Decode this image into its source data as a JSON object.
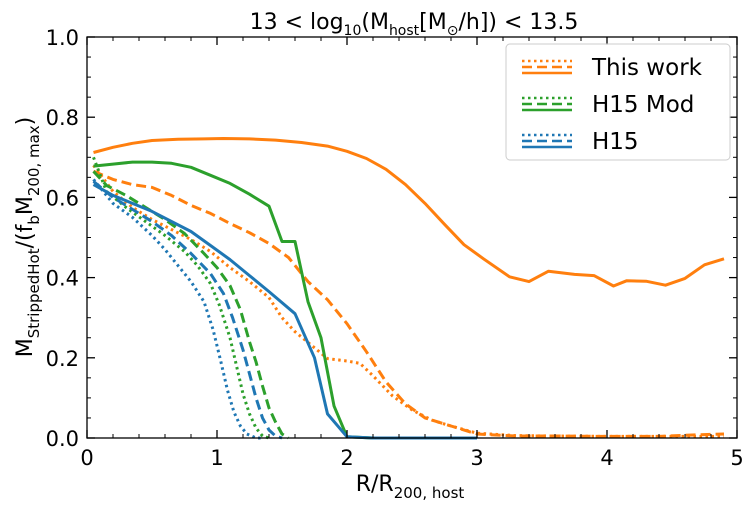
{
  "chart_data": {
    "type": "line",
    "title": "13 < log10(Mhost[M⊙/h]) < 13.5",
    "title_parts": {
      "lead": "13 < log",
      "sub1": "10",
      "mid1": "(M",
      "sub2": "host",
      "mid2": "[M",
      "sun": "⊙",
      "trail": "/h]) < 13.5"
    },
    "xlabel": "R/R200, host",
    "xlabel_parts": {
      "main": "R/R",
      "sub": "200, host"
    },
    "ylabel": "MStrippedHot/(fbM200, max)",
    "ylabel_parts": {
      "m1": "M",
      "s1": "StrippedHot",
      "m2": "/(f",
      "s2": "b",
      "m3": "M",
      "s3": "200, max",
      "m4": ")"
    },
    "xlim": [
      0,
      5
    ],
    "ylim": [
      0,
      1
    ],
    "xticks": [
      "0",
      "1",
      "2",
      "3",
      "4",
      "5"
    ],
    "yticks": [
      "0.0",
      "0.2",
      "0.4",
      "0.6",
      "0.8",
      "1.0"
    ],
    "legend": {
      "placement": "top-right",
      "entries": [
        {
          "label": "This work",
          "color": "#ff7f0e"
        },
        {
          "label": "H15 Mod",
          "color": "#2ca02c"
        },
        {
          "label": "H15",
          "color": "#1f77b4"
        }
      ]
    },
    "series": [
      {
        "name": "This work (solid)",
        "color": "#ff7f0e",
        "style": "solid",
        "x": [
          0.05,
          0.2,
          0.35,
          0.5,
          0.7,
          0.9,
          1.05,
          1.25,
          1.45,
          1.65,
          1.85,
          2.0,
          2.15,
          2.3,
          2.45,
          2.6,
          2.75,
          2.9,
          3.05,
          3.25,
          3.4,
          3.55,
          3.75,
          3.9,
          4.05,
          4.15,
          4.3,
          4.45,
          4.6,
          4.75,
          4.9
        ],
        "y": [
          0.712,
          0.725,
          0.735,
          0.742,
          0.745,
          0.746,
          0.747,
          0.746,
          0.743,
          0.737,
          0.728,
          0.715,
          0.697,
          0.67,
          0.632,
          0.585,
          0.533,
          0.482,
          0.447,
          0.402,
          0.39,
          0.416,
          0.408,
          0.405,
          0.379,
          0.392,
          0.391,
          0.381,
          0.398,
          0.432,
          0.447
        ]
      },
      {
        "name": "This work (dashed)",
        "color": "#ff7f0e",
        "style": "dashed",
        "x": [
          0.05,
          0.2,
          0.35,
          0.5,
          0.65,
          0.8,
          0.95,
          1.1,
          1.25,
          1.4,
          1.55,
          1.7,
          1.85,
          2.0,
          2.15,
          2.3,
          2.45,
          2.6,
          2.8,
          3.0,
          3.3,
          3.6,
          4.0,
          4.4,
          4.7,
          4.9
        ],
        "y": [
          0.665,
          0.645,
          0.632,
          0.625,
          0.605,
          0.58,
          0.56,
          0.535,
          0.512,
          0.485,
          0.45,
          0.39,
          0.345,
          0.285,
          0.215,
          0.14,
          0.085,
          0.05,
          0.03,
          0.01,
          0.005,
          0.005,
          0.004,
          0.004,
          0.008,
          0.01
        ]
      },
      {
        "name": "This work (dotted)",
        "color": "#ff7f0e",
        "style": "dotted",
        "x": [
          0.05,
          0.2,
          0.35,
          0.5,
          0.65,
          0.8,
          0.95,
          1.1,
          1.25,
          1.4,
          1.5,
          1.6,
          1.75,
          1.85,
          2.0,
          2.1,
          2.2,
          2.35,
          2.5,
          2.65,
          2.8,
          3.0,
          3.3,
          3.6,
          4.0,
          4.5,
          4.9
        ],
        "y": [
          0.68,
          0.615,
          0.575,
          0.545,
          0.52,
          0.495,
          0.465,
          0.425,
          0.39,
          0.35,
          0.3,
          0.265,
          0.225,
          0.198,
          0.192,
          0.186,
          0.155,
          0.105,
          0.07,
          0.045,
          0.03,
          0.012,
          0.006,
          0.005,
          0.004,
          0.004,
          0.004
        ]
      },
      {
        "name": "H15 Mod (solid)",
        "color": "#2ca02c",
        "style": "solid",
        "x": [
          0.05,
          0.2,
          0.35,
          0.5,
          0.65,
          0.8,
          0.95,
          1.1,
          1.25,
          1.4,
          1.5,
          1.6,
          1.7,
          1.8,
          1.9,
          2.0,
          2.2,
          2.5,
          3.0
        ],
        "y": [
          0.678,
          0.683,
          0.688,
          0.688,
          0.685,
          0.675,
          0.655,
          0.635,
          0.608,
          0.578,
          0.49,
          0.49,
          0.34,
          0.25,
          0.08,
          0.003,
          0,
          0,
          0
        ]
      },
      {
        "name": "H15 Mod (dashed)",
        "color": "#2ca02c",
        "style": "dashed",
        "x": [
          0.05,
          0.15,
          0.3,
          0.45,
          0.6,
          0.75,
          0.9,
          1.0,
          1.1,
          1.18,
          1.25,
          1.3,
          1.35,
          1.4,
          1.45,
          1.5,
          1.55
        ],
        "y": [
          0.665,
          0.63,
          0.605,
          0.575,
          0.545,
          0.51,
          0.46,
          0.425,
          0.38,
          0.32,
          0.24,
          0.19,
          0.13,
          0.075,
          0.04,
          0.01,
          0
        ]
      },
      {
        "name": "H15 Mod (dotted)",
        "color": "#2ca02c",
        "style": "dotted",
        "x": [
          0.05,
          0.15,
          0.3,
          0.45,
          0.6,
          0.75,
          0.85,
          0.95,
          1.02,
          1.1,
          1.15,
          1.2,
          1.25,
          1.3,
          1.35,
          1.4
        ],
        "y": [
          0.7,
          0.615,
          0.575,
          0.54,
          0.505,
          0.465,
          0.43,
          0.385,
          0.33,
          0.25,
          0.18,
          0.11,
          0.06,
          0.025,
          0.005,
          0
        ]
      },
      {
        "name": "H15 (solid)",
        "color": "#1f77b4",
        "style": "solid",
        "x": [
          0.05,
          0.2,
          0.35,
          0.5,
          0.65,
          0.8,
          0.95,
          1.1,
          1.25,
          1.4,
          1.6,
          1.75,
          1.85,
          2.0,
          2.2,
          2.5,
          3.0
        ],
        "y": [
          0.632,
          0.605,
          0.585,
          0.565,
          0.54,
          0.515,
          0.48,
          0.445,
          0.405,
          0.365,
          0.31,
          0.2,
          0.06,
          0.003,
          0,
          0,
          0
        ]
      },
      {
        "name": "H15 (dashed)",
        "color": "#1f77b4",
        "style": "dashed",
        "x": [
          0.05,
          0.2,
          0.35,
          0.5,
          0.65,
          0.8,
          0.95,
          1.05,
          1.12,
          1.2,
          1.25,
          1.3,
          1.35,
          1.4,
          1.45,
          1.5
        ],
        "y": [
          0.64,
          0.6,
          0.57,
          0.54,
          0.505,
          0.46,
          0.41,
          0.36,
          0.3,
          0.22,
          0.16,
          0.1,
          0.05,
          0.02,
          0.005,
          0
        ]
      },
      {
        "name": "H15 (dotted)",
        "color": "#1f77b4",
        "style": "dotted",
        "x": [
          0.05,
          0.2,
          0.35,
          0.5,
          0.6,
          0.7,
          0.8,
          0.9,
          0.97,
          1.03,
          1.08,
          1.13,
          1.18,
          1.23,
          1.3,
          1.35
        ],
        "y": [
          0.645,
          0.585,
          0.55,
          0.505,
          0.47,
          0.43,
          0.39,
          0.34,
          0.27,
          0.19,
          0.12,
          0.065,
          0.03,
          0.01,
          0,
          0
        ]
      }
    ]
  }
}
